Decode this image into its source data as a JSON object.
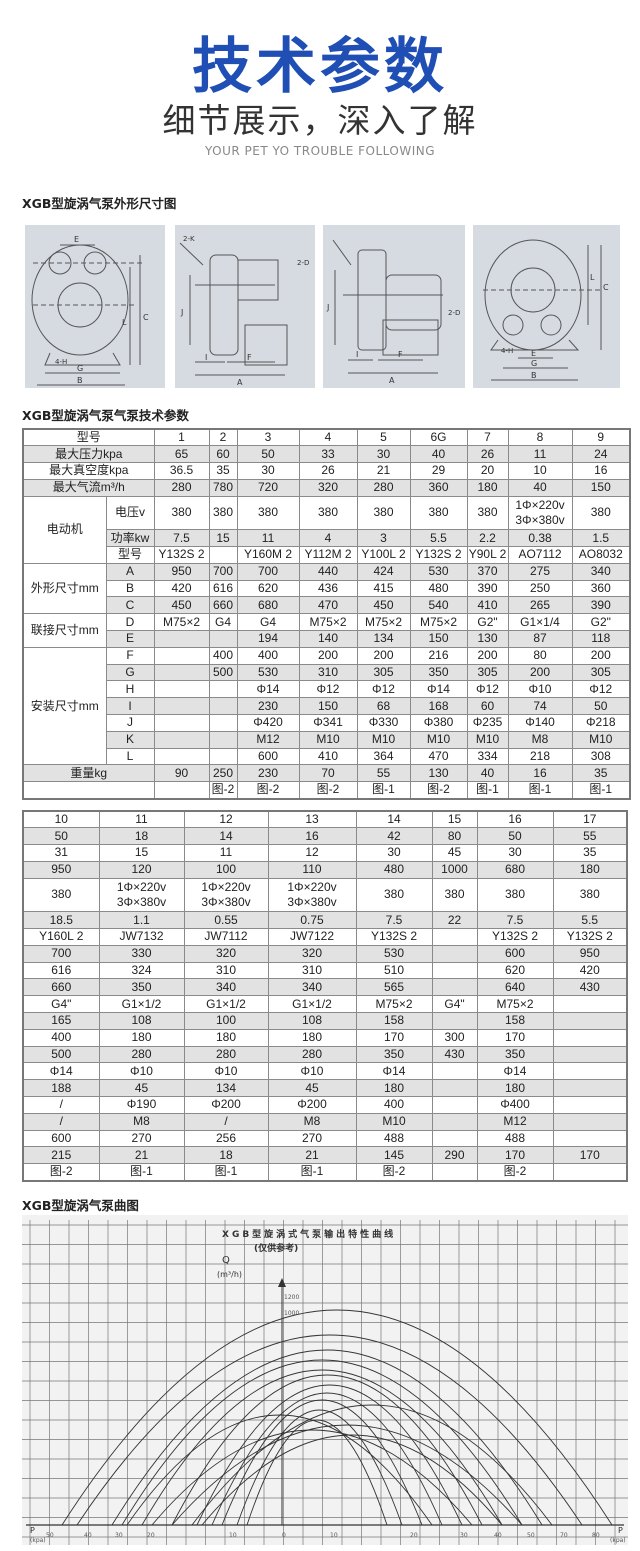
{
  "header": {
    "title": "技术参数",
    "subtitle": "细节展示，深入了解",
    "tagline": "YOUR PET YO TROUBLE FOLLOWING"
  },
  "sections": {
    "drawings": "XGB型旋涡气泵外形尺寸图",
    "params": "XGB型旋涡气泵气泵技术参数",
    "curves": "XGB型旋涡气泵曲图"
  },
  "drawings": {
    "d1": {
      "e": "E",
      "c": "C",
      "l": "L",
      "h": "4-H",
      "g": "G",
      "b": "B"
    },
    "d2": {
      "k": "2-K",
      "j": "J",
      "i": "I",
      "f": "F",
      "a": "A",
      "d": "2-D"
    },
    "d3": {
      "j": "J",
      "i": "I",
      "f": "F",
      "a": "A",
      "d": "2-D"
    },
    "d4": {
      "l": "L",
      "c": "C",
      "h": "4-H",
      "e": "E",
      "g": "G",
      "b": "B"
    }
  },
  "table1": {
    "rows": [
      {
        "group": "型号",
        "sub": null,
        "values": [
          "1",
          "2",
          "3",
          "4",
          "5",
          "6G",
          "7",
          "8",
          "9"
        ]
      },
      {
        "group": "最大压力kpa",
        "sub": null,
        "values": [
          "65",
          "60",
          "50",
          "33",
          "30",
          "40",
          "26",
          "11",
          "24"
        ]
      },
      {
        "group": "最大真空度kpa",
        "sub": null,
        "values": [
          "36.5",
          "35",
          "30",
          "26",
          "21",
          "29",
          "20",
          "10",
          "16"
        ]
      },
      {
        "group": "最大气流m³/h",
        "sub": null,
        "values": [
          "280",
          "780",
          "720",
          "320",
          "280",
          "360",
          "180",
          "40",
          "150"
        ]
      },
      {
        "group": "电动机",
        "sub": "电压v",
        "tall": true,
        "values": [
          "380",
          "380",
          "380",
          "380",
          "380",
          "380",
          "380",
          "1Φ×220v\n3Φ×380v",
          "380"
        ]
      },
      {
        "group": "电动机",
        "sub": "功率kw",
        "values": [
          "7.5",
          "15",
          "11",
          "4",
          "3",
          "5.5",
          "2.2",
          "0.38",
          "1.5"
        ]
      },
      {
        "group": "电动机",
        "sub": "型号",
        "values": [
          "Y132S 2",
          "",
          "Y160M 2",
          "Y112M 2",
          "Y100L 2",
          "Y132S 2",
          "Y90L 2",
          "AO7112",
          "AO8032"
        ]
      },
      {
        "group": "外形尺寸mm",
        "sub": "A",
        "values": [
          "950",
          "700",
          "700",
          "440",
          "424",
          "530",
          "370",
          "275",
          "340"
        ]
      },
      {
        "group": "外形尺寸mm",
        "sub": "B",
        "values": [
          "420",
          "616",
          "620",
          "436",
          "415",
          "480",
          "390",
          "250",
          "360"
        ]
      },
      {
        "group": "外形尺寸mm",
        "sub": "C",
        "values": [
          "450",
          "660",
          "680",
          "470",
          "450",
          "540",
          "410",
          "265",
          "390"
        ]
      },
      {
        "group": "联接尺寸mm",
        "sub": "D",
        "values": [
          "M75×2",
          "G4",
          "G4",
          "M75×2",
          "M75×2",
          "M75×2",
          "G2\"",
          "G1×1/4",
          "G2\""
        ]
      },
      {
        "group": "联接尺寸mm",
        "sub": "E",
        "values": [
          "",
          "",
          "194",
          "140",
          "134",
          "150",
          "130",
          "87",
          "118"
        ]
      },
      {
        "group": "安装尺寸mm",
        "sub": "F",
        "values": [
          "",
          "400",
          "400",
          "200",
          "200",
          "216",
          "200",
          "80",
          "200"
        ]
      },
      {
        "group": "安装尺寸mm",
        "sub": "G",
        "values": [
          "",
          "500",
          "530",
          "310",
          "305",
          "350",
          "305",
          "200",
          "305"
        ]
      },
      {
        "group": "安装尺寸mm",
        "sub": "H",
        "values": [
          "",
          "",
          "Φ14",
          "Φ12",
          "Φ12",
          "Φ14",
          "Φ12",
          "Φ10",
          "Φ12"
        ]
      },
      {
        "group": "安装尺寸mm",
        "sub": "I",
        "values": [
          "",
          "",
          "230",
          "150",
          "68",
          "168",
          "60",
          "74",
          "50"
        ]
      },
      {
        "group": "安装尺寸mm",
        "sub": "J",
        "values": [
          "",
          "",
          "Φ420",
          "Φ341",
          "Φ330",
          "Φ380",
          "Φ235",
          "Φ140",
          "Φ218"
        ]
      },
      {
        "group": "安装尺寸mm",
        "sub": "K",
        "values": [
          "",
          "",
          "M12",
          "M10",
          "M10",
          "M10",
          "M10",
          "M8",
          "M10"
        ]
      },
      {
        "group": "安装尺寸mm",
        "sub": "L",
        "values": [
          "",
          "",
          "600",
          "410",
          "364",
          "470",
          "334",
          "218",
          "308"
        ]
      },
      {
        "group": "重量kg",
        "sub": null,
        "values": [
          "90",
          "250",
          "230",
          "70",
          "55",
          "130",
          "40",
          "16",
          "35"
        ]
      },
      {
        "group": "",
        "sub": null,
        "values": [
          "",
          "图-2",
          "图-2",
          "图-2",
          "图-1",
          "图-2",
          "图-1",
          "图-1",
          "图-1"
        ]
      }
    ]
  },
  "table2": {
    "rows": [
      [
        "10",
        "11",
        "12",
        "13",
        "14",
        "15",
        "16",
        "17"
      ],
      [
        "50",
        "18",
        "14",
        "16",
        "42",
        "80",
        "50",
        "55"
      ],
      [
        "31",
        "15",
        "11",
        "12",
        "30",
        "45",
        "30",
        "35"
      ],
      [
        "950",
        "120",
        "100",
        "110",
        "480",
        "1000",
        "680",
        "180"
      ],
      [
        "380",
        "1Φ×220v\n3Φ×380v",
        "1Φ×220v\n3Φ×380v",
        "1Φ×220v\n3Φ×380v",
        "380",
        "380",
        "380",
        "380"
      ],
      [
        "18.5",
        "1.1",
        "0.55",
        "0.75",
        "7.5",
        "22",
        "7.5",
        "5.5"
      ],
      [
        "Y160L 2",
        "JW7132",
        "JW7112",
        "JW7122",
        "Y132S 2",
        "",
        "Y132S 2",
        "Y132S 2"
      ],
      [
        "700",
        "330",
        "320",
        "320",
        "530",
        "",
        "600",
        "950"
      ],
      [
        "616",
        "324",
        "310",
        "310",
        "510",
        "",
        "620",
        "420"
      ],
      [
        "660",
        "350",
        "340",
        "340",
        "565",
        "",
        "640",
        "430"
      ],
      [
        "G4\"",
        "G1×1/2",
        "G1×1/2",
        "G1×1/2",
        "M75×2",
        "G4\"",
        "M75×2",
        ""
      ],
      [
        "165",
        "108",
        "100",
        "108",
        "158",
        "",
        "158",
        ""
      ],
      [
        "400",
        "180",
        "180",
        "180",
        "170",
        "300",
        "170",
        ""
      ],
      [
        "500",
        "280",
        "280",
        "280",
        "350",
        "430",
        "350",
        ""
      ],
      [
        "Φ14",
        "Φ10",
        "Φ10",
        "Φ10",
        "Φ14",
        "",
        "Φ14",
        ""
      ],
      [
        "188",
        "45",
        "134",
        "45",
        "180",
        "",
        "180",
        ""
      ],
      [
        "/",
        "Φ190",
        "Φ200",
        "Φ200",
        "400",
        "",
        "Φ400",
        ""
      ],
      [
        "/",
        "M8",
        "/",
        "M8",
        "M10",
        "",
        "M12",
        ""
      ],
      [
        "600",
        "270",
        "256",
        "270",
        "488",
        "",
        "488",
        ""
      ],
      [
        "215",
        "21",
        "18",
        "21",
        "145",
        "290",
        "170",
        "170"
      ],
      [
        "图-2",
        "图-1",
        "图-1",
        "图-1",
        "图-2",
        "",
        "图-2",
        ""
      ]
    ]
  },
  "curve_chart": {
    "title": "XGB型旋涡式气泵输出特性曲线",
    "note": "(仅供参考)",
    "y_label": "Q",
    "y_unit": "(m³/h)",
    "y_ticks": [
      "1200",
      "1000"
    ],
    "x_label": "P",
    "x_unit": "(kpa)",
    "x_ticks_left": [
      "50",
      "40",
      "30",
      "20",
      "10",
      "0"
    ],
    "x_ticks_right": [
      "10",
      "20",
      "30",
      "40",
      "50",
      "70",
      "80"
    ]
  }
}
